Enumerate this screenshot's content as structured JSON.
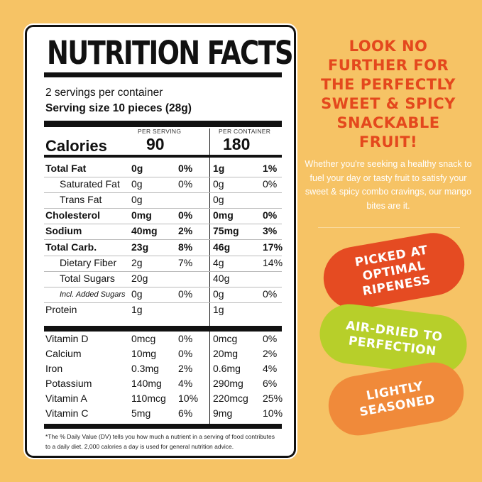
{
  "nutrition": {
    "title": "NUTRITION FACTS",
    "servings": "2 servings per container",
    "serving_size": "Serving size 10 pieces (28g)",
    "header_serving": "PER SERVING",
    "header_container": "PER CONTAINER",
    "calories_label": "Calories",
    "calories_serving": "90",
    "calories_container": "180",
    "nutrients": [
      {
        "name": "Total Fat",
        "a": "0g",
        "b": "0%",
        "c": "1g",
        "d": "1%"
      },
      {
        "name": "Saturated Fat",
        "a": "0g",
        "b": "0%",
        "c": "0g",
        "d": "0%"
      },
      {
        "name": "Trans Fat",
        "a": "0g",
        "b": "",
        "c": "0g",
        "d": ""
      },
      {
        "name": "Cholesterol",
        "a": "0mg",
        "b": "0%",
        "c": "0mg",
        "d": "0%"
      },
      {
        "name": "Sodium",
        "a": "40mg",
        "b": "2%",
        "c": "75mg",
        "d": "3%"
      },
      {
        "name": "Total Carb.",
        "a": "23g",
        "b": "8%",
        "c": "46g",
        "d": "17%"
      },
      {
        "name": "Dietary Fiber",
        "a": "2g",
        "b": "7%",
        "c": "4g",
        "d": "14%"
      },
      {
        "name": "Total Sugars",
        "a": "20g",
        "b": "",
        "c": "40g",
        "d": ""
      },
      {
        "name": "Incl. Added Sugars",
        "a": "0g",
        "b": "0%",
        "c": "0g",
        "d": "0%"
      },
      {
        "name": "Protein",
        "a": "1g",
        "b": "",
        "c": "1g",
        "d": ""
      }
    ],
    "vitamins": [
      {
        "name": "Vitamin D",
        "a": "0mcg",
        "b": "0%",
        "c": "0mcg",
        "d": "0%"
      },
      {
        "name": "Calcium",
        "a": "10mg",
        "b": "0%",
        "c": "20mg",
        "d": "2%"
      },
      {
        "name": "Iron",
        "a": "0.3mg",
        "b": "2%",
        "c": "0.6mg",
        "d": "4%"
      },
      {
        "name": "Potassium",
        "a": "140mg",
        "b": "4%",
        "c": "290mg",
        "d": "6%"
      },
      {
        "name": "Vitamin A",
        "a": "110mcg",
        "b": "10%",
        "c": "220mcg",
        "d": "25%"
      },
      {
        "name": "Vitamin C",
        "a": "5mg",
        "b": "6%",
        "c": "9mg",
        "d": "10%"
      }
    ],
    "footnote": "*The % Daily Value (DV) tells you how much a nutrient in a serving of food contributes to a daily diet. 2,000 calories a day is used for general nutrition advice."
  },
  "promo": {
    "headline": [
      "LOOK NO",
      "FURTHER FOR",
      "THE PERFECTLY",
      "SWEET & SPICY",
      "SNACKABLE",
      "FRUIT!"
    ],
    "body": "Whether you're seeking a healthy snack to fuel your day or tasty fruit to satisfy your sweet & spicy combo cravings, our mango bites are it.",
    "badges": [
      {
        "lines": [
          "PICKED AT",
          "OPTIMAL",
          "RIPENESS"
        ],
        "color": "#e54b22"
      },
      {
        "lines": [
          "AIR-DRIED TO",
          "PERFECTION"
        ],
        "color": "#b7cf2a"
      },
      {
        "lines": [
          "LIGHTLY",
          "SEASONED"
        ],
        "color": "#f08a3a"
      }
    ]
  },
  "colors": {
    "background": "#f6c365",
    "headline": "#e4481d"
  }
}
